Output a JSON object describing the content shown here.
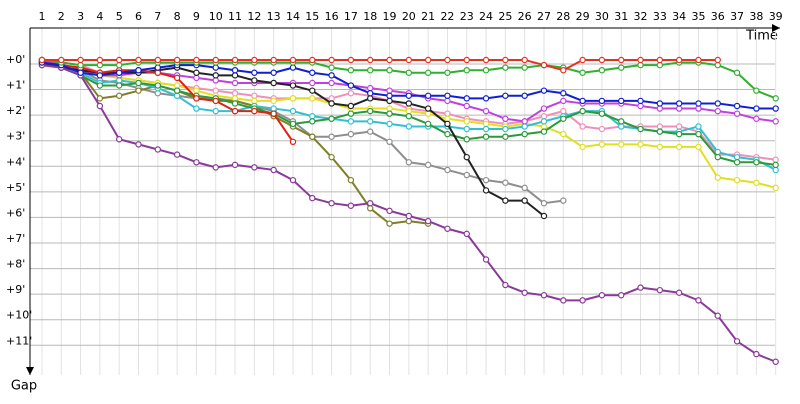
{
  "chart_data": {
    "type": "line",
    "x_label": "Time",
    "y_label": "Gap",
    "x": [
      1,
      2,
      3,
      4,
      5,
      6,
      7,
      8,
      9,
      10,
      11,
      12,
      13,
      14,
      15,
      16,
      17,
      18,
      19,
      20,
      21,
      22,
      23,
      24,
      25,
      26,
      27,
      28,
      29,
      30,
      31,
      32,
      33,
      34,
      35,
      36,
      37,
      38,
      39
    ],
    "xlim": [
      0.5,
      40
    ],
    "ylim": [
      -1.25,
      13.1
    ],
    "y_inverted": true,
    "grid": true,
    "yticks": [
      {
        "value": 0,
        "label": "+0'"
      },
      {
        "value": 1,
        "label": "+1'"
      },
      {
        "value": 2,
        "label": "+2'"
      },
      {
        "value": 3,
        "label": "+3'"
      },
      {
        "value": 4,
        "label": "+4'"
      },
      {
        "value": 5,
        "label": "+5'"
      },
      {
        "value": 6,
        "label": "+6'"
      },
      {
        "value": 7,
        "label": "+7'"
      },
      {
        "value": 8,
        "label": "+8'"
      },
      {
        "value": 9,
        "label": "+9'"
      },
      {
        "value": 10,
        "label": "+10'"
      },
      {
        "value": 11,
        "label": "+11'"
      }
    ],
    "series": [
      {
        "color": "#8e8e8e",
        "values": [
          0.1,
          0.2,
          0.4,
          0.8,
          0.9,
          1.1,
          1.3,
          1.4,
          1.5,
          1.5,
          1.6,
          1.8,
          2.0,
          2.4,
          3.0,
          3.0,
          2.9,
          2.8,
          3.2,
          4.0,
          4.1,
          4.3,
          4.5,
          4.7,
          4.8,
          5.0,
          5.6,
          5.5,
          null,
          null,
          null,
          null,
          null,
          null,
          null,
          null,
          null,
          null,
          null
        ]
      },
      {
        "color": "#7f7f2a",
        "values": [
          0.2,
          0.3,
          0.5,
          1.5,
          1.4,
          1.2,
          1.0,
          1.2,
          1.5,
          1.6,
          1.6,
          1.8,
          2.2,
          2.6,
          3.0,
          3.8,
          4.7,
          5.8,
          6.4,
          6.3,
          6.4,
          null,
          null,
          null,
          null,
          null,
          null,
          null,
          null,
          null,
          null,
          null,
          null,
          null,
          null,
          null,
          null,
          null,
          null
        ]
      },
      {
        "color": "#f08fb8",
        "values": [
          0.0,
          0.1,
          0.2,
          0.5,
          0.7,
          0.8,
          0.9,
          1.0,
          1.1,
          1.2,
          1.3,
          1.4,
          1.5,
          1.5,
          1.5,
          1.5,
          1.3,
          1.4,
          1.6,
          1.9,
          2.0,
          2.1,
          2.3,
          2.4,
          2.5,
          2.4,
          2.2,
          2.0,
          2.6,
          2.7,
          2.6,
          2.6,
          2.6,
          2.6,
          2.8,
          3.7,
          3.7,
          3.8,
          3.9
        ]
      },
      {
        "color": "#e0e020",
        "values": [
          0.1,
          0.2,
          0.4,
          0.6,
          0.7,
          0.8,
          0.9,
          1.0,
          1.2,
          1.4,
          1.5,
          1.6,
          1.6,
          1.5,
          1.5,
          1.7,
          1.9,
          1.9,
          1.9,
          2.0,
          2.1,
          2.3,
          2.4,
          2.5,
          2.6,
          2.5,
          2.6,
          2.9,
          3.4,
          3.3,
          3.3,
          3.3,
          3.4,
          3.4,
          3.4,
          4.6,
          4.7,
          4.8,
          5.0
        ]
      },
      {
        "color": "#30c0d0",
        "values": [
          0.1,
          0.3,
          0.5,
          0.9,
          0.8,
          0.9,
          1.1,
          1.4,
          1.9,
          2.0,
          2.0,
          1.8,
          1.9,
          2.0,
          2.2,
          2.3,
          2.4,
          2.4,
          2.5,
          2.6,
          2.6,
          2.6,
          2.7,
          2.7,
          2.7,
          2.6,
          2.4,
          2.2,
          2.0,
          2.0,
          2.6,
          2.7,
          2.8,
          2.8,
          2.6,
          3.6,
          3.8,
          3.9,
          4.3
        ]
      },
      {
        "color": "#2a9a3a",
        "values": [
          0.1,
          0.3,
          0.6,
          1.0,
          1.0,
          0.9,
          1.0,
          1.2,
          1.4,
          1.5,
          1.7,
          1.9,
          2.1,
          2.5,
          2.4,
          2.3,
          2.1,
          2.0,
          2.1,
          2.2,
          2.5,
          2.9,
          3.1,
          3.0,
          3.0,
          2.9,
          2.8,
          2.3,
          2.0,
          2.1,
          2.4,
          2.7,
          2.8,
          2.9,
          2.9,
          3.8,
          4.0,
          4.0,
          4.1
        ]
      },
      {
        "color": "#c040e0",
        "values": [
          0.0,
          0.2,
          0.4,
          0.6,
          0.6,
          0.5,
          0.5,
          0.6,
          0.7,
          0.8,
          0.9,
          0.9,
          0.9,
          0.9,
          0.9,
          0.9,
          1.0,
          1.1,
          1.2,
          1.3,
          1.5,
          1.6,
          1.8,
          2.0,
          2.3,
          2.4,
          1.9,
          1.6,
          1.7,
          1.7,
          1.7,
          1.8,
          1.9,
          1.9,
          1.9,
          2.0,
          2.1,
          2.3,
          2.4
        ]
      },
      {
        "color": "#222222",
        "values": [
          0.1,
          0.3,
          0.4,
          0.5,
          0.5,
          0.5,
          0.4,
          0.3,
          0.5,
          0.6,
          0.6,
          0.8,
          0.9,
          1.0,
          1.2,
          1.7,
          1.8,
          1.5,
          1.6,
          1.7,
          1.9,
          2.5,
          3.8,
          5.1,
          5.5,
          5.5,
          6.1,
          null,
          null,
          null,
          null,
          null,
          null,
          null,
          null,
          null,
          null,
          null,
          null
        ]
      },
      {
        "color": "#8a3a9a",
        "values": [
          0.2,
          0.3,
          0.6,
          1.8,
          3.1,
          3.3,
          3.5,
          3.7,
          4.0,
          4.2,
          4.1,
          4.2,
          4.3,
          4.7,
          5.4,
          5.6,
          5.7,
          5.6,
          5.9,
          6.1,
          6.3,
          6.6,
          6.8,
          7.8,
          8.8,
          9.1,
          9.2,
          9.4,
          9.4,
          9.2,
          9.2,
          8.9,
          9.0,
          9.1,
          9.4,
          10.0,
          11.0,
          11.5,
          11.8
        ]
      },
      {
        "color": "#e02010",
        "values": [
          0.1,
          0.2,
          0.3,
          0.5,
          0.4,
          0.4,
          0.5,
          0.7,
          1.5,
          1.6,
          2.0,
          2.0,
          2.1,
          3.2,
          null,
          null,
          null,
          null,
          null,
          null,
          null,
          null,
          null,
          null,
          null,
          null,
          null,
          null,
          null,
          null,
          null,
          null,
          null,
          null,
          null,
          null,
          null,
          null,
          null
        ]
      },
      {
        "color": "#1020d0",
        "values": [
          0.1,
          0.2,
          0.5,
          0.6,
          0.5,
          0.4,
          0.3,
          0.2,
          0.2,
          0.3,
          0.4,
          0.5,
          0.5,
          0.3,
          0.5,
          0.6,
          1.0,
          1.3,
          1.4,
          1.4,
          1.4,
          1.4,
          1.5,
          1.5,
          1.4,
          1.4,
          1.2,
          1.3,
          1.6,
          1.6,
          1.6,
          1.6,
          1.7,
          1.7,
          1.7,
          1.7,
          1.8,
          1.9,
          1.9
        ]
      },
      {
        "color": "#30b030",
        "values": [
          0,
          0.1,
          0.2,
          0.2,
          0.2,
          0.1,
          0.1,
          0.1,
          0.1,
          0.1,
          0.1,
          0.1,
          0.1,
          0.1,
          0.1,
          0.3,
          0.4,
          0.4,
          0.4,
          0.5,
          0.5,
          0.5,
          0.4,
          0.4,
          0.3,
          0.3,
          0.2,
          0.3,
          0.5,
          0.4,
          0.3,
          0.2,
          0.2,
          0.1,
          0.1,
          0.2,
          0.5,
          1.2,
          1.5
        ]
      },
      {
        "color": "#e83020",
        "values": [
          0,
          0,
          0,
          0,
          0,
          0,
          0,
          0,
          0,
          0,
          0,
          0,
          0,
          0,
          0,
          0,
          0,
          0,
          0,
          0,
          0,
          0,
          0,
          0,
          0,
          0,
          0.2,
          0.4,
          0,
          0,
          0,
          0,
          0,
          0,
          0,
          0,
          null,
          null,
          null
        ]
      }
    ]
  }
}
